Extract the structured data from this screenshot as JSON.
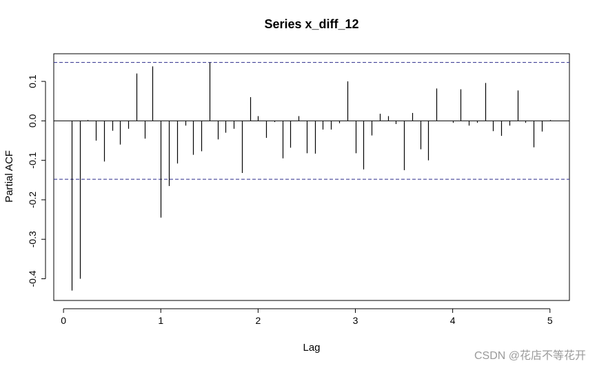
{
  "chart_data": {
    "type": "bar",
    "title": "Series  x_diff_12",
    "xlabel": "Lag",
    "ylabel": "Partial ACF",
    "xlim": [
      -0.1,
      5.2
    ],
    "ylim": [
      -0.455,
      0.17
    ],
    "xticks": [
      0,
      1,
      2,
      3,
      4,
      5
    ],
    "xtick_labels": [
      "0",
      "1",
      "2",
      "3",
      "4",
      "5"
    ],
    "yticks": [
      -0.4,
      -0.3,
      -0.2,
      -0.1,
      0.0,
      0.1
    ],
    "ytick_labels": [
      "-0.4",
      "-0.3",
      "-0.2",
      "-0.1",
      "0.0",
      "0.1"
    ],
    "confidence_bound": 0.148,
    "lags": [
      0.0833,
      0.1667,
      0.25,
      0.3333,
      0.4167,
      0.5,
      0.5833,
      0.6667,
      0.75,
      0.8333,
      0.9167,
      1.0,
      1.0833,
      1.1667,
      1.25,
      1.3333,
      1.4167,
      1.5,
      1.5833,
      1.6667,
      1.75,
      1.8333,
      1.9167,
      2.0,
      2.0833,
      2.1667,
      2.25,
      2.3333,
      2.4167,
      2.5,
      2.5833,
      2.6667,
      2.75,
      2.8333,
      2.9167,
      3.0,
      3.0833,
      3.1667,
      3.25,
      3.3333,
      3.4167,
      3.5,
      3.5833,
      3.6667,
      3.75,
      3.8333,
      3.9167,
      4.0,
      4.0833,
      4.1667,
      4.25,
      4.3333,
      4.4167,
      4.5,
      4.5833,
      4.6667,
      4.75,
      4.8333,
      4.9167,
      5.0
    ],
    "values": [
      -0.43,
      -0.4,
      0.002,
      -0.05,
      -0.103,
      -0.025,
      -0.06,
      -0.02,
      0.12,
      -0.045,
      0.138,
      -0.245,
      -0.165,
      -0.108,
      -0.012,
      -0.086,
      -0.077,
      0.148,
      -0.047,
      -0.03,
      -0.02,
      -0.132,
      0.06,
      0.012,
      -0.043,
      -0.003,
      -0.095,
      -0.068,
      0.012,
      -0.082,
      -0.083,
      -0.022,
      -0.022,
      -0.006,
      0.1,
      -0.082,
      -0.123,
      -0.037,
      0.018,
      0.012,
      -0.008,
      -0.125,
      0.02,
      -0.072,
      -0.1,
      0.082,
      0.0,
      -0.005,
      0.08,
      -0.012,
      -0.005,
      0.096,
      -0.026,
      -0.038,
      -0.012,
      0.077,
      -0.005,
      -0.067,
      -0.027,
      0.002
    ],
    "grid": false,
    "legend": "none"
  },
  "watermark": "CSDN @花店不等花开"
}
